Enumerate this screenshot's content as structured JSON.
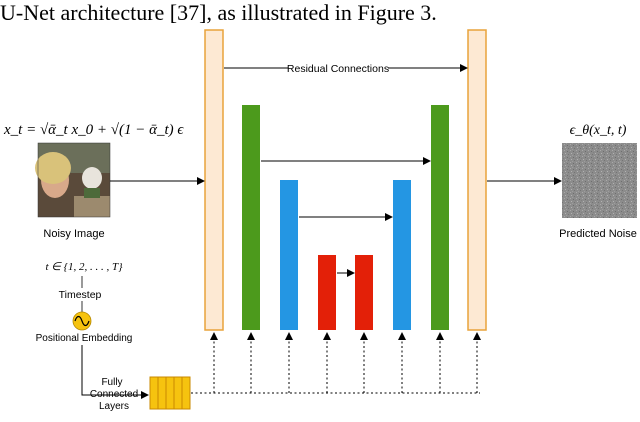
{
  "header_fragment": "U-Net architecture [37], as illustrated in Figure 3.",
  "equation": "x_t = √ᾱ_t x_0 + √(1 − ᾱ_t) ϵ",
  "labels": {
    "noisy_image": "Noisy Image",
    "predicted_noise": "Predicted Noise",
    "predicted_noise_formula": "ϵ_θ(x_t, t)",
    "residual_connections": "Residual Connections",
    "timestep_set": "t ∈ {1, 2, . . . , T}",
    "timestep": "Timestep",
    "positional_embedding": "Positional Embedding",
    "fully_connected_line1": "Fully",
    "fully_connected_line2": "Connected",
    "fully_connected_line3": "Layers"
  },
  "icons": {
    "embedding": "sine-wave-icon"
  },
  "colors": {
    "outer_block_fill": "#fde9d3",
    "outer_block_stroke": "#e8a33b",
    "green_block": "#4c9a1c",
    "blue_block": "#2496e3",
    "red_block": "#e32008",
    "fc_block": "#f6c30f",
    "fc_stroke": "#c98a00",
    "embedding_circle": "#f6c30f"
  }
}
